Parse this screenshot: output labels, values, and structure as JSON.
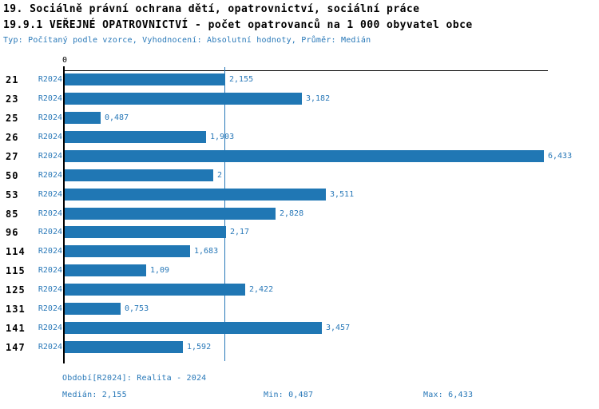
{
  "header": {
    "title1": "19. Sociálně právní ochrana dětí, opatrovnictví, sociální práce",
    "title2": "19.9.1 VEŘEJNÉ OPATROVNICTVÍ - počet opatrovanců na 1 000 obyvatel obce",
    "meta": "Typ: Počítaný podle vzorce, Vyhodnocení: Absolutní hodnoty, Průměr: Medián"
  },
  "chart_data": {
    "type": "bar",
    "orientation": "horizontal",
    "title": "19.9.1 VEŘEJNÉ OPATROVNICTVÍ - počet opatrovanců na 1 000 obyvatel obce",
    "categories": [
      "21",
      "23",
      "25",
      "26",
      "27",
      "50",
      "53",
      "85",
      "96",
      "114",
      "115",
      "125",
      "131",
      "141",
      "147"
    ],
    "series": [
      {
        "name": "R2024",
        "values": [
          2.155,
          3.182,
          0.487,
          1.903,
          6.433,
          2,
          3.511,
          2.828,
          2.17,
          1.683,
          1.09,
          2.422,
          0.753,
          3.457,
          1.592
        ]
      }
    ],
    "value_labels": [
      "2,155",
      "3,182",
      "0,487",
      "1,903",
      "6,433",
      "2",
      "3,511",
      "2,828",
      "2,17",
      "1,683",
      "1,09",
      "2,422",
      "0,753",
      "3,457",
      "1,592"
    ],
    "xlim": [
      0,
      6.5
    ],
    "x_tick_labels": [
      "0"
    ],
    "zero_label": "0",
    "median": 2.155,
    "min": 0.487,
    "max": 6.433,
    "grid": false,
    "legend_position": "none",
    "bar_color": "#2077b4",
    "label_color": "#2878b8",
    "axis_color": "#000000",
    "median_line_color": "#2878b8"
  },
  "footer": {
    "period": "Období[R2024]: Realita - 2024",
    "median": "Medián: 2,155",
    "min": "Min: 0,487",
    "max": "Max: 6,433"
  }
}
